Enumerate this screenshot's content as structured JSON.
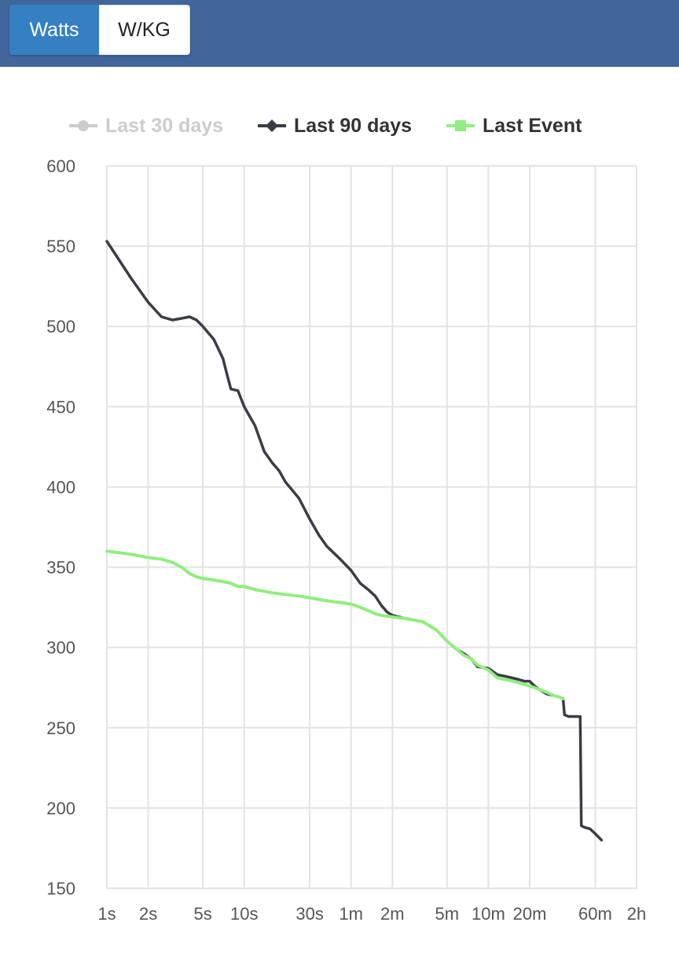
{
  "toggle": {
    "watts_label": "Watts",
    "wkg_label": "W/KG",
    "selected": "Watts"
  },
  "colors": {
    "header_bg": "#41669b",
    "active_button": "#3480c3",
    "series_last_30": "#cccccc",
    "series_last_90": "#3a3d45",
    "series_last_event": "#90ee7e"
  },
  "chart_data": {
    "type": "line",
    "x_scale": "log",
    "y_range": [
      150,
      600
    ],
    "y_ticks": [
      600,
      550,
      500,
      450,
      400,
      350,
      300,
      250,
      200,
      150
    ],
    "x_ticks": [
      {
        "label": "1s",
        "seconds": 1
      },
      {
        "label": "2s",
        "seconds": 2
      },
      {
        "label": "5s",
        "seconds": 5
      },
      {
        "label": "10s",
        "seconds": 10
      },
      {
        "label": "30s",
        "seconds": 30
      },
      {
        "label": "1m",
        "seconds": 60
      },
      {
        "label": "2m",
        "seconds": 120
      },
      {
        "label": "5m",
        "seconds": 300
      },
      {
        "label": "10m",
        "seconds": 600
      },
      {
        "label": "20m",
        "seconds": 1200
      },
      {
        "label": "60m",
        "seconds": 3600
      },
      {
        "label": "2h",
        "seconds": 7200
      }
    ],
    "grid": true,
    "legend_position": "top",
    "series": [
      {
        "name": "Last 30 days",
        "hidden": true,
        "marker": "circle",
        "points": []
      },
      {
        "name": "Last 90 days",
        "hidden": false,
        "marker": "diamond",
        "points": [
          [
            1,
            553
          ],
          [
            1.5,
            530
          ],
          [
            2,
            515
          ],
          [
            2.5,
            506
          ],
          [
            3,
            504
          ],
          [
            3.5,
            505
          ],
          [
            4,
            506
          ],
          [
            4.5,
            504
          ],
          [
            5,
            500
          ],
          [
            6,
            492
          ],
          [
            7,
            480
          ],
          [
            7.5,
            470
          ],
          [
            8,
            461
          ],
          [
            9,
            460
          ],
          [
            10,
            450
          ],
          [
            12,
            438
          ],
          [
            14,
            422
          ],
          [
            16,
            415
          ],
          [
            18,
            410
          ],
          [
            20,
            403
          ],
          [
            25,
            393
          ],
          [
            30,
            380
          ],
          [
            35,
            370
          ],
          [
            40,
            363
          ],
          [
            50,
            355
          ],
          [
            60,
            348
          ],
          [
            70,
            340
          ],
          [
            80,
            336
          ],
          [
            90,
            332
          ],
          [
            100,
            326
          ],
          [
            110,
            322
          ],
          [
            120,
            320
          ],
          [
            150,
            318
          ],
          [
            200,
            316
          ],
          [
            250,
            311
          ],
          [
            300,
            304
          ],
          [
            350,
            299
          ],
          [
            400,
            296
          ],
          [
            450,
            293
          ],
          [
            500,
            288
          ],
          [
            600,
            287
          ],
          [
            700,
            283
          ],
          [
            800,
            282
          ],
          [
            900,
            281
          ],
          [
            1000,
            280
          ],
          [
            1100,
            279
          ],
          [
            1200,
            279
          ],
          [
            1300,
            276
          ],
          [
            1400,
            274
          ],
          [
            1600,
            271
          ],
          [
            1800,
            270
          ],
          [
            2000,
            269
          ],
          [
            2100,
            268
          ],
          [
            2150,
            258
          ],
          [
            2300,
            257
          ],
          [
            2500,
            257
          ],
          [
            2700,
            257
          ],
          [
            2800,
            257
          ],
          [
            2850,
            189
          ],
          [
            3000,
            188
          ],
          [
            3300,
            187
          ],
          [
            3600,
            184
          ],
          [
            4000,
            180
          ]
        ]
      },
      {
        "name": "Last Event",
        "hidden": false,
        "marker": "square",
        "points": [
          [
            1,
            360
          ],
          [
            1.5,
            358
          ],
          [
            2,
            356
          ],
          [
            2.5,
            355
          ],
          [
            3,
            353
          ],
          [
            3.5,
            350
          ],
          [
            4,
            346
          ],
          [
            4.5,
            344
          ],
          [
            5,
            343
          ],
          [
            6,
            342
          ],
          [
            7,
            341
          ],
          [
            8,
            340
          ],
          [
            9,
            338
          ],
          [
            10,
            338
          ],
          [
            12,
            336
          ],
          [
            14,
            335
          ],
          [
            16,
            334
          ],
          [
            20,
            333
          ],
          [
            25,
            332
          ],
          [
            30,
            331
          ],
          [
            40,
            329
          ],
          [
            50,
            328
          ],
          [
            60,
            327
          ],
          [
            70,
            325
          ],
          [
            80,
            323
          ],
          [
            90,
            321
          ],
          [
            100,
            320
          ],
          [
            120,
            319
          ],
          [
            150,
            318
          ],
          [
            200,
            316
          ],
          [
            250,
            311
          ],
          [
            300,
            304
          ],
          [
            350,
            299
          ],
          [
            400,
            295
          ],
          [
            450,
            293
          ],
          [
            500,
            289
          ],
          [
            600,
            286
          ],
          [
            700,
            281
          ],
          [
            800,
            280
          ],
          [
            900,
            279
          ],
          [
            1000,
            278
          ],
          [
            1200,
            276
          ],
          [
            1400,
            274
          ],
          [
            1600,
            272
          ],
          [
            1800,
            270
          ],
          [
            2000,
            269
          ],
          [
            2100,
            268
          ]
        ]
      }
    ]
  }
}
